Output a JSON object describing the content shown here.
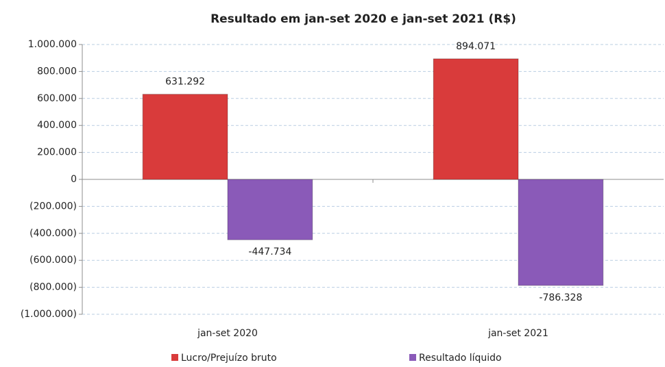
{
  "chart_data": {
    "type": "bar",
    "title": "Resultado em jan-set 2020 e jan-set 2021 (R$)",
    "categories": [
      "jan-set 2020",
      "jan-set 2021"
    ],
    "series": [
      {
        "name": "Lucro/Prejuízo bruto",
        "color": "#d93b3b",
        "values": [
          631292,
          894071
        ],
        "value_labels": [
          "631.292",
          "894.071"
        ]
      },
      {
        "name": "Resultado líquido",
        "color": "#8a5ab8",
        "values": [
          -447734,
          -786328
        ],
        "value_labels": [
          "-447.734",
          "-786.328"
        ]
      }
    ],
    "ylim": [
      -1000000,
      1000000
    ],
    "yticks": [
      {
        "value": -1000000,
        "label": "(1.000.000)"
      },
      {
        "value": -800000,
        "label": "(800.000)"
      },
      {
        "value": -600000,
        "label": "(600.000)"
      },
      {
        "value": -400000,
        "label": "(400.000)"
      },
      {
        "value": -200000,
        "label": "(200.000)"
      },
      0,
      {
        "value": 200000,
        "label": "200.000"
      },
      {
        "value": 400000,
        "label": "400.000"
      },
      {
        "value": 600000,
        "label": "600.000"
      },
      {
        "value": 800000,
        "label": "800.000"
      },
      {
        "value": 1000000,
        "label": "1.000.000"
      }
    ],
    "grid": true,
    "legend": "bottom"
  }
}
